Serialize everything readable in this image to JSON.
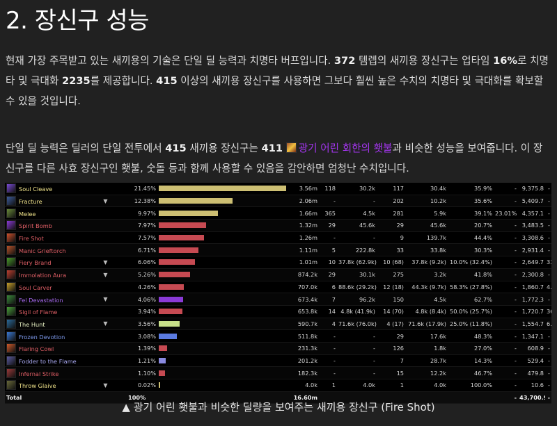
{
  "heading": "2. 장신구 성능",
  "para1": {
    "t1": "현재 가장 주목받고 있는 새끼용의 기술은 단일 딜 능력과 치명타 버프입니다. ",
    "b1": "372",
    "t2": " 템렙의 새끼용 장신구는 업타임 ",
    "b2": "16%",
    "t3": "로 치명타 및 극대화 ",
    "b3": "2235",
    "t4": "를 제공합니다. ",
    "b4": "415",
    "t5": " 이상의 새끼용 장신구를 사용하면 그보다 훨씬 높은 수치의 치명타 및 극대화를 확보할 수 있을 것입니다."
  },
  "para2": {
    "t1": "단일 딜 능력은 딜러의 단일 전투에서 ",
    "b1": "415",
    "t2": " 새끼용 장신구는 ",
    "b2": "411",
    "link": "광기 어린 회한의 횃불",
    "t3": "과 비슷한 성능을 보여줍니다. 이 장신구를 다른 사효 장신구인 횃불, 숫돌 등과 함께 사용할 수 있음을 감안하면 엄청난 수치입니다."
  },
  "colors": {
    "link": "#a335ee",
    "background": "#212121",
    "table_bg": "#000000"
  },
  "table": {
    "rows": [
      {
        "name": "Soul Cleave",
        "pct": "21.45%",
        "amount": "3.56m",
        "c1": "118",
        "c2": "30.2k",
        "c3": "117",
        "c4": "30.4k",
        "c5": "35.9%",
        "c6": "-",
        "c7": "-",
        "dps": "9,375.8",
        "share": 21.45,
        "bar": "#cdbf73",
        "text": "#f0e38a",
        "icon": "#7a4bd6",
        "caret": ""
      },
      {
        "name": "Fracture",
        "pct": "12.38%",
        "amount": "2.06m",
        "c1": "-",
        "c2": "-",
        "c3": "202",
        "c4": "10.2k",
        "c5": "35.6%",
        "c6": "-",
        "c7": "-",
        "dps": "5,409.7",
        "share": 12.38,
        "bar": "#cdbf73",
        "text": "#f0e38a",
        "icon": "#3c5a9a",
        "caret": "▼"
      },
      {
        "name": "Melee",
        "pct": "9.97%",
        "amount": "1.66m",
        "c1": "365",
        "c2": "4.5k",
        "c3": "281",
        "c4": "5.9k",
        "c5": "39.1%",
        "c6": "-",
        "c7": "23.01%",
        "dps": "4,357.1",
        "share": 9.97,
        "bar": "#cdbf73",
        "text": "#f0e38a",
        "icon": "#6a8a3a",
        "caret": ""
      },
      {
        "name": "Spirit Bomb",
        "pct": "7.97%",
        "amount": "1.32m",
        "c1": "29",
        "c2": "45.6k",
        "c3": "29",
        "c4": "45.6k",
        "c5": "20.7%",
        "c6": "-",
        "c7": "-",
        "dps": "3,483.5",
        "share": 7.97,
        "bar": "#c64a52",
        "text": "#e05f66",
        "icon": "#8a3ad6",
        "caret": ""
      },
      {
        "name": "Fire Shot",
        "pct": "7.57%",
        "amount": "1.26m",
        "c1": "-",
        "c2": "-",
        "c3": "9",
        "c4": "139.7k",
        "c5": "44.4%",
        "c6": "-",
        "c7": "-",
        "dps": "3,308.6",
        "share": 7.57,
        "bar": "#c64a52",
        "text": "#e05f66",
        "icon": "#d0502a",
        "caret": ""
      },
      {
        "name": "Manic Grieftorch",
        "pct": "6.71%",
        "amount": "1.11m",
        "c1": "5",
        "c2": "222.8k",
        "c3": "33",
        "c4": "33.8k",
        "c5": "30.3%",
        "c6": "-",
        "c7": "-",
        "dps": "2,931.4",
        "share": 6.71,
        "bar": "#c64a52",
        "text": "#e05f66",
        "icon": "#b8532a",
        "caret": ""
      },
      {
        "name": "Fiery Brand",
        "pct": "6.06%",
        "amount": "1.01m",
        "c1": "10",
        "c2": "37.8k (62.9k)",
        "c3": "10 (68)",
        "c4": "37.8k (9.2k)",
        "c5": "10.0% (32.4%)",
        "c6": "33.12%",
        "c7": "-",
        "dps": "2,649.7",
        "share": 6.06,
        "bar": "#c64a52",
        "text": "#e05f66",
        "icon": "#4a9a2a",
        "caret": "▼"
      },
      {
        "name": "Immolation Aura",
        "pct": "5.26%",
        "amount": "874.2k",
        "c1": "29",
        "c2": "30.1k",
        "c3": "275",
        "c4": "3.2k",
        "c5": "41.8%",
        "c6": "-",
        "c7": "-",
        "dps": "2,300.8",
        "share": 5.26,
        "bar": "#c64a52",
        "text": "#e05f66",
        "icon": "#c04030",
        "caret": "▼"
      },
      {
        "name": "Soul Carver",
        "pct": "4.26%",
        "amount": "707.0k",
        "c1": "6",
        "c2": "88.6k (29.2k)",
        "c3": "12 (18)",
        "c4": "44.3k (9.7k)",
        "c5": "58.3% (27.8%)",
        "c6": "4.76%",
        "c7": "-",
        "dps": "1,860.7",
        "share": 4.26,
        "bar": "#c64a52",
        "text": "#e05f66",
        "icon": "#c7a02a",
        "caret": ""
      },
      {
        "name": "Fel Devastation",
        "pct": "4.06%",
        "amount": "673.4k",
        "c1": "7",
        "c2": "96.2k",
        "c3": "150",
        "c4": "4.5k",
        "c5": "62.7%",
        "c6": "-",
        "c7": "-",
        "dps": "1,772.3",
        "share": 4.06,
        "bar": "#8a3ad6",
        "text": "#a76af0",
        "icon": "#3a8a3a",
        "caret": "▼"
      },
      {
        "name": "Sigil of Flame",
        "pct": "3.94%",
        "amount": "653.8k",
        "c1": "14",
        "c2": "4.8k (41.9k)",
        "c3": "14 (70)",
        "c4": "4.8k (8.4k)",
        "c5": "50.0% (25.7%)",
        "c6": "36.86%",
        "c7": "-",
        "dps": "1,720.7",
        "share": 3.94,
        "bar": "#c64a52",
        "text": "#e05f66",
        "icon": "#4aa03a",
        "caret": ""
      },
      {
        "name": "The Hunt",
        "pct": "3.56%",
        "amount": "590.7k",
        "c1": "4",
        "c2": "71.6k (76.0k)",
        "c3": "4 (17)",
        "c4": "71.6k (17.9k)",
        "c5": "25.0% (11.8%)",
        "c6": "6.34%",
        "c7": "-",
        "dps": "1,554.7",
        "share": 3.56,
        "bar": "#c8e08a",
        "text": "#e6f0c2",
        "icon": "#2a6a9a",
        "caret": "▼"
      },
      {
        "name": "Frozen Devotion",
        "pct": "3.08%",
        "amount": "511.8k",
        "c1": "-",
        "c2": "-",
        "c3": "29",
        "c4": "17.6k",
        "c5": "48.3%",
        "c6": "-",
        "c7": "-",
        "dps": "1,347.1",
        "share": 3.08,
        "bar": "#5a7ae0",
        "text": "#7f9cf0",
        "icon": "#3a7ad6",
        "caret": ""
      },
      {
        "name": "Flaring Cowl",
        "pct": "1.39%",
        "amount": "231.3k",
        "c1": "-",
        "c2": "-",
        "c3": "126",
        "c4": "1.8k",
        "c5": "27.0%",
        "c6": "-",
        "c7": "-",
        "dps": "608.9",
        "share": 1.39,
        "bar": "#c64a52",
        "text": "#e05f66",
        "icon": "#d05a2a",
        "caret": ""
      },
      {
        "name": "Fodder to the Flame",
        "pct": "1.21%",
        "amount": "201.2k",
        "c1": "-",
        "c2": "-",
        "c3": "7",
        "c4": "28.7k",
        "c5": "14.3%",
        "c6": "-",
        "c7": "-",
        "dps": "529.4",
        "share": 1.21,
        "bar": "#8a8ae0",
        "text": "#a8a8f0",
        "icon": "#5a5aa0",
        "caret": ""
      },
      {
        "name": "Infernal Strike",
        "pct": "1.10%",
        "amount": "182.3k",
        "c1": "-",
        "c2": "-",
        "c3": "15",
        "c4": "12.2k",
        "c5": "46.7%",
        "c6": "-",
        "c7": "-",
        "dps": "479.8",
        "share": 1.1,
        "bar": "#c64a52",
        "text": "#e05f66",
        "icon": "#9a3a3a",
        "caret": ""
      },
      {
        "name": "Throw Glaive",
        "pct": "0.02%",
        "amount": "4.0k",
        "c1": "1",
        "c2": "4.0k",
        "c3": "1",
        "c4": "4.0k",
        "c5": "100.0%",
        "c6": "-",
        "c7": "-",
        "dps": "10.6",
        "share": 0.02,
        "bar": "#cdbf73",
        "text": "#f0e38a",
        "icon": "#6a6a3a",
        "caret": "▼"
      }
    ],
    "total": {
      "label": "Total",
      "pct": "100%",
      "amount": "16.60m",
      "dps": "43,700.9",
      "c6": "-",
      "c7": "-"
    }
  },
  "caption": "▲ 광기 어린 횃불과 비슷한 딜량을 보여주는 새끼용 장신구 (Fire Shot)"
}
